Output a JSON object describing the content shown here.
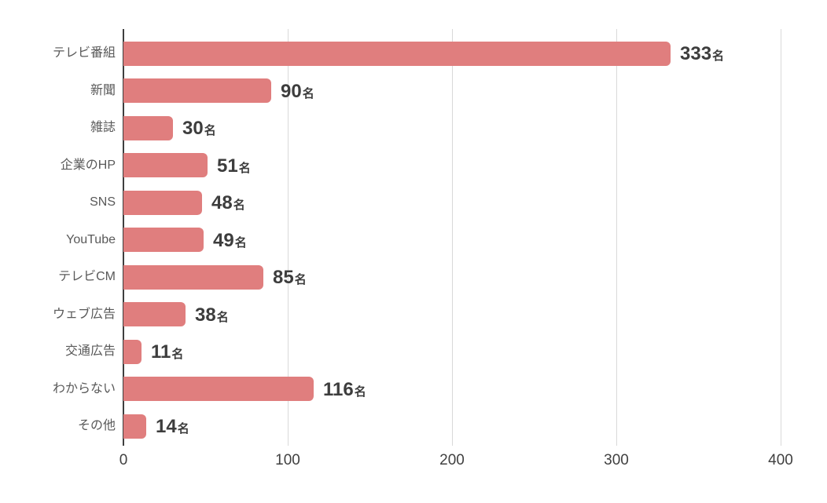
{
  "chart_data": {
    "type": "bar",
    "orientation": "horizontal",
    "title": "",
    "xlabel": "",
    "ylabel": "",
    "categories": [
      "テレビ番組",
      "新聞",
      "雑誌",
      "企業のHP",
      "SNS",
      "YouTube",
      "テレビCM",
      "ウェブ広告",
      "交通広告",
      "わからない",
      "その他"
    ],
    "values": [
      333,
      90,
      30,
      51,
      48,
      49,
      85,
      38,
      11,
      116,
      14
    ],
    "value_unit": "名",
    "value_labels": [
      "333名",
      "90名",
      "30名",
      "51名",
      "48名",
      "49名",
      "85名",
      "38名",
      "11名",
      "116名",
      "14名"
    ],
    "xlim": [
      0,
      400
    ],
    "xticks": [
      0,
      100,
      200,
      300,
      400
    ],
    "grid": true,
    "legend": false,
    "colors": {
      "bar": "#e07e7e",
      "axis_line": "#3f3f3f",
      "gridline": "#d9d9d9",
      "category_label": "#595959",
      "value_label": "#3d3d3d",
      "tick_label": "#404040",
      "background": "#ffffff"
    }
  }
}
